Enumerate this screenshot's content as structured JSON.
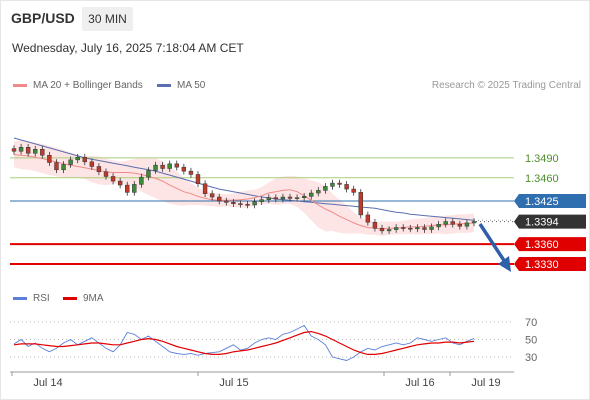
{
  "header": {
    "symbol": "GBP/USD",
    "interval": "30 MIN",
    "datetime": "Wednesday, July 16, 2025 7:18:04 AM CET",
    "credit": "Research © 2025 Trading Central"
  },
  "colors": {
    "candle_up": "#3a8a3a",
    "candle_down": "#c0392b",
    "ma20": "#f08a8a",
    "bollinger_fill": "#fde0e0",
    "ma50": "#5b6fae",
    "level_green": "#a8cf7a",
    "level_blue": "#2f6fb0",
    "level_red": "#e00000",
    "price_tag": "#333333",
    "rsi": "#5b7fd8",
    "rsi_ma": "#e00000",
    "arrow": "#2f5fa8"
  },
  "chart_data": [
    {
      "type": "candlestick",
      "title": "",
      "legend": [
        {
          "name": "MA 20 + Bollinger Bands",
          "color": "#f08a8a"
        },
        {
          "name": "MA 50",
          "color": "#5b6fae"
        }
      ],
      "x_ticks": [
        "Jul 14",
        "Jul 15",
        "Jul 16",
        "Jul 19"
      ],
      "ylim": [
        1.3318,
        1.3532
      ],
      "levels": [
        {
          "label": "1.3490",
          "value": 1.349,
          "kind": "resistance-green"
        },
        {
          "label": "1.3460",
          "value": 1.346,
          "kind": "resistance-green"
        },
        {
          "label": "1.3425",
          "value": 1.3425,
          "kind": "pivot-blue"
        },
        {
          "label": "1.3394",
          "value": 1.3394,
          "kind": "last-price"
        },
        {
          "label": "1.3360",
          "value": 1.336,
          "kind": "support-red"
        },
        {
          "label": "1.3330",
          "value": 1.333,
          "kind": "support-red"
        }
      ],
      "close": [
        1.35,
        1.3506,
        1.3497,
        1.3503,
        1.3494,
        1.3483,
        1.3472,
        1.348,
        1.3487,
        1.3491,
        1.3484,
        1.3477,
        1.3469,
        1.3462,
        1.3455,
        1.3449,
        1.3438,
        1.345,
        1.3461,
        1.3471,
        1.3479,
        1.3474,
        1.3481,
        1.3476,
        1.347,
        1.3465,
        1.3451,
        1.3436,
        1.3431,
        1.3425,
        1.3423,
        1.3421,
        1.342,
        1.3419,
        1.3424,
        1.3427,
        1.343,
        1.3428,
        1.3431,
        1.3429,
        1.343,
        1.3432,
        1.3437,
        1.3441,
        1.3447,
        1.3452,
        1.345,
        1.3443,
        1.3438,
        1.3404,
        1.3393,
        1.3384,
        1.338,
        1.3382,
        1.3385,
        1.3384,
        1.3383,
        1.3385,
        1.3382,
        1.3386,
        1.339,
        1.3394,
        1.339,
        1.3387,
        1.3392,
        1.3394
      ],
      "ma20": [
        1.3495,
        1.3494,
        1.3493,
        1.3491,
        1.3489,
        1.3486,
        1.3484,
        1.3481,
        1.3479,
        1.3477,
        1.3475,
        1.3473,
        1.3471,
        1.3469,
        1.3468,
        1.3468,
        1.3468,
        1.3467,
        1.3465,
        1.3462,
        1.3459,
        1.3455,
        1.3449,
        1.3444,
        1.3439,
        1.3436,
        1.3432,
        1.3429,
        1.3427,
        1.3426,
        1.3426,
        1.3426,
        1.3427,
        1.3428,
        1.343,
        1.3433,
        1.3437,
        1.3439,
        1.3441,
        1.3442,
        1.3439,
        1.3433,
        1.3426,
        1.3419,
        1.3413,
        1.3408,
        1.3402,
        1.3397,
        1.3392,
        1.3388,
        1.3385,
        1.3384,
        1.3383,
        1.3384,
        1.3384,
        1.3385,
        1.3386,
        1.3386,
        1.3387,
        1.3388,
        1.3389,
        1.3389,
        1.339,
        1.3391,
        1.3391,
        1.3392
      ],
      "bb_upper": [
        1.3515,
        1.3516,
        1.3514,
        1.3513,
        1.3511,
        1.3508,
        1.3505,
        1.3502,
        1.3498,
        1.3494,
        1.3492,
        1.3493,
        1.3492,
        1.3489,
        1.3486,
        1.3484,
        1.3486,
        1.3488,
        1.3491,
        1.349,
        1.3489,
        1.3485,
        1.3477,
        1.3469,
        1.346,
        1.3452,
        1.3445,
        1.344,
        1.3437,
        1.3436,
        1.3435,
        1.3436,
        1.3439,
        1.3441,
        1.3442,
        1.3446,
        1.3453,
        1.3459,
        1.3462,
        1.3463,
        1.3462,
        1.3459,
        1.3456,
        1.3453,
        1.3447,
        1.3436,
        1.3427,
        1.3418,
        1.3408,
        1.34,
        1.3396,
        1.3394,
        1.3394,
        1.3394,
        1.3394,
        1.3395,
        1.3397,
        1.3398,
        1.3399,
        1.3401,
        1.3402,
        1.3403,
        1.3404,
        1.3405,
        1.3405,
        1.3406
      ],
      "bb_lower": [
        1.3476,
        1.3473,
        1.3472,
        1.347,
        1.3467,
        1.3464,
        1.3462,
        1.346,
        1.346,
        1.346,
        1.3458,
        1.3453,
        1.345,
        1.3449,
        1.345,
        1.3452,
        1.345,
        1.3446,
        1.3439,
        1.3434,
        1.3429,
        1.3425,
        1.3421,
        1.3419,
        1.3418,
        1.3419,
        1.3419,
        1.3418,
        1.3417,
        1.3416,
        1.3417,
        1.3416,
        1.3415,
        1.3415,
        1.3418,
        1.342,
        1.3421,
        1.3419,
        1.342,
        1.3421,
        1.3416,
        1.3407,
        1.3396,
        1.3385,
        1.3379,
        1.338,
        1.3377,
        1.3376,
        1.3376,
        1.3376,
        1.3374,
        1.3374,
        1.3372,
        1.3374,
        1.3374,
        1.3375,
        1.3375,
        1.3374,
        1.3375,
        1.3375,
        1.3376,
        1.3375,
        1.3376,
        1.3377,
        1.3377,
        1.3378
      ],
      "ma50": [
        1.352,
        1.3517,
        1.3514,
        1.3511,
        1.3508,
        1.3505,
        1.3502,
        1.3499,
        1.3496,
        1.3493,
        1.349,
        1.3488,
        1.3486,
        1.3484,
        1.3482,
        1.348,
        1.3478,
        1.3476,
        1.3474,
        1.3472,
        1.347,
        1.3467,
        1.3464,
        1.3461,
        1.3458,
        1.3455,
        1.3452,
        1.3449,
        1.3446,
        1.3443,
        1.3441,
        1.3439,
        1.3437,
        1.3435,
        1.3433,
        1.3431,
        1.343,
        1.3428,
        1.3427,
        1.3426,
        1.3425,
        1.3424,
        1.3423,
        1.3422,
        1.3421,
        1.342,
        1.3419,
        1.3418,
        1.3417,
        1.3416,
        1.3415,
        1.3414,
        1.3412,
        1.341,
        1.3408,
        1.3407,
        1.3405,
        1.3404,
        1.3403,
        1.3402,
        1.3401,
        1.34,
        1.3399,
        1.3398,
        1.3397,
        1.3396
      ]
    },
    {
      "type": "line",
      "title": "",
      "legend": [
        {
          "name": "RSI",
          "color": "#5b7fd8"
        },
        {
          "name": "9MA",
          "color": "#e00000"
        }
      ],
      "y_ticks": [
        "70",
        "50",
        "30"
      ],
      "ylim": [
        20,
        80
      ],
      "series": [
        {
          "name": "RSI",
          "values": [
            45,
            50,
            42,
            46,
            40,
            36,
            40,
            46,
            50,
            44,
            48,
            52,
            46,
            40,
            36,
            44,
            58,
            56,
            50,
            54,
            48,
            42,
            36,
            34,
            33,
            34,
            32,
            34,
            35,
            36,
            40,
            44,
            38,
            40,
            46,
            50,
            52,
            50,
            56,
            58,
            62,
            66,
            54,
            50,
            44,
            30,
            28,
            26,
            30,
            36,
            40,
            38,
            42,
            44,
            46,
            44,
            46,
            52,
            50,
            48,
            50,
            52,
            46,
            44,
            48,
            51
          ]
        },
        {
          "name": "9MA",
          "values": [
            44,
            45,
            45,
            45,
            44,
            43,
            42,
            42,
            43,
            44,
            45,
            46,
            46,
            45,
            44,
            44,
            46,
            48,
            50,
            51,
            50,
            48,
            45,
            42,
            40,
            38,
            36,
            34,
            33,
            33,
            34,
            36,
            37,
            38,
            40,
            42,
            44,
            46,
            49,
            52,
            55,
            58,
            59,
            57,
            54,
            50,
            46,
            42,
            38,
            35,
            33,
            33,
            34,
            36,
            38,
            40,
            42,
            44,
            45,
            46,
            46,
            47,
            47,
            46,
            47,
            48
          ]
        }
      ]
    }
  ]
}
